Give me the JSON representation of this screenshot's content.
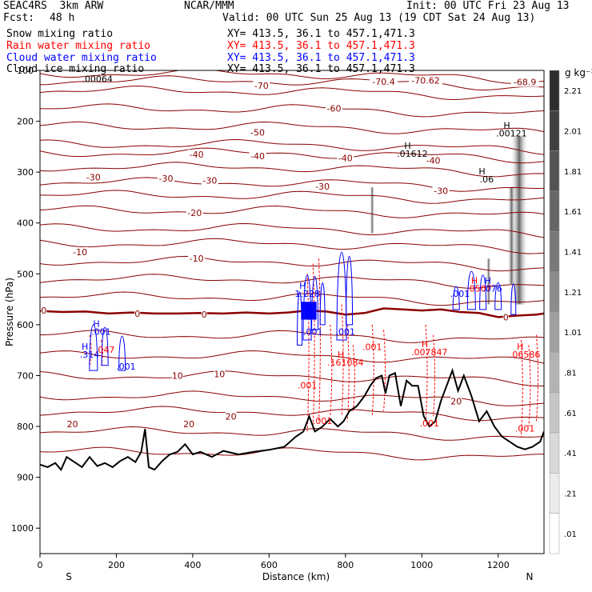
{
  "header": {
    "model": "SEAC4RS  3km ARW",
    "institution": "NCAR/MMM",
    "init": "Init: 00 UTC Fri 23 Aug 13",
    "fcst_label": "Fcst:",
    "fcst_value": "48 h",
    "valid": "Valid: 00 UTC Sun 25 Aug 13 (19 CDT Sat 24 Aug 13)"
  },
  "fields": [
    {
      "name": "Snow mixing ratio",
      "xy": "XY= 413.5, 36.1 to 457.1,471.3",
      "color": "#000000"
    },
    {
      "name": "Rain water mixing ratio",
      "xy": "XY= 413.5, 36.1 to 457.1,471.3",
      "color": "#ff0000"
    },
    {
      "name": "Cloud water mixing ratio",
      "xy": "XY= 413.5, 36.1 to 457.1,471.3",
      "color": "#0000ff"
    },
    {
      "name": "Cloud ice mixing ratio",
      "xy": "XY= 413.5, 36.1 to 457.1,471.3",
      "color": "#000000"
    }
  ],
  "colors": {
    "temperature_contour": "#8b0000",
    "zero_isotherm": "#8b0000",
    "rain": "#ff0000",
    "cloud_water": "#0000ff",
    "snow_ice": "#000000",
    "terrain": "#000000"
  },
  "chart_data": {
    "type": "cross-section",
    "xlabel": "Distance (km)",
    "ylabel": "Pressure (hPa)",
    "xlim": [
      0,
      1320
    ],
    "ylim": [
      1050,
      100
    ],
    "xticks": [
      "0",
      "200",
      "400",
      "600",
      "800",
      "1000",
      "1200"
    ],
    "yticks": [
      "100",
      "200",
      "300",
      "400",
      "500",
      "600",
      "700",
      "800",
      "900",
      "1000"
    ],
    "end_labels": {
      "left": "S",
      "right": "N"
    },
    "colorbar": {
      "unit": "g kg⁻¹",
      "labels": [
        "2.21",
        "2.01",
        "1.81",
        "1.61",
        "1.41",
        "1.21",
        "1.01",
        ".81",
        ".61",
        ".41",
        ".21",
        ".01"
      ]
    },
    "temperature_contour_labels": [
      {
        "text": "-70",
        "x": 580,
        "p": 130
      },
      {
        "text": "-70.4",
        "x": 900,
        "p": 122
      },
      {
        "text": "-70.62",
        "x": 1010,
        "p": 120
      },
      {
        "text": "-68.9",
        "x": 1270,
        "p": 123
      },
      {
        "text": "-60",
        "x": 770,
        "p": 175
      },
      {
        "text": "-50",
        "x": 570,
        "p": 222
      },
      {
        "text": "-40",
        "x": 410,
        "p": 265
      },
      {
        "text": "-40",
        "x": 570,
        "p": 268
      },
      {
        "text": "-40",
        "x": 800,
        "p": 272
      },
      {
        "text": "-40",
        "x": 1030,
        "p": 277
      },
      {
        "text": "-30",
        "x": 140,
        "p": 310
      },
      {
        "text": "-30",
        "x": 330,
        "p": 312
      },
      {
        "text": "-30",
        "x": 445,
        "p": 316
      },
      {
        "text": "-30",
        "x": 740,
        "p": 328
      },
      {
        "text": "-30",
        "x": 1050,
        "p": 337
      },
      {
        "text": "-20",
        "x": 405,
        "p": 380
      },
      {
        "text": "-10",
        "x": 105,
        "p": 457
      },
      {
        "text": "-10",
        "x": 410,
        "p": 470
      },
      {
        "text": "0",
        "x": 10,
        "p": 572
      },
      {
        "text": "0",
        "x": 255,
        "p": 578
      },
      {
        "text": "0",
        "x": 430,
        "p": 580
      },
      {
        "text": "0",
        "x": 1220,
        "p": 585
      },
      {
        "text": "10",
        "x": 360,
        "p": 700
      },
      {
        "text": "10",
        "x": 470,
        "p": 697
      },
      {
        "text": "20",
        "x": 85,
        "p": 795
      },
      {
        "text": "20",
        "x": 390,
        "p": 795
      },
      {
        "text": "20",
        "x": 500,
        "p": 780
      },
      {
        "text": "20",
        "x": 1090,
        "p": 750
      }
    ],
    "extrema_labels": [
      {
        "marker": "",
        "value": ".00064",
        "x": 150,
        "p": 123,
        "color": "#000000"
      },
      {
        "marker": "H",
        "value": ".01612",
        "x": 975,
        "p": 270,
        "color": "#000000"
      },
      {
        "marker": "H",
        "value": ".00121",
        "x": 1235,
        "p": 230,
        "color": "#000000"
      },
      {
        "marker": "H",
        "value": ".06",
        "x": 1170,
        "p": 320,
        "color": "#000000"
      },
      {
        "marker": "H",
        "value": ".001",
        "x": 160,
        "p": 620,
        "color": "#0000ff"
      },
      {
        "marker": "H",
        "value": ".314",
        "x": 130,
        "p": 665,
        "color": "#0000ff"
      },
      {
        "marker": "",
        "value": ".047",
        "x": 170,
        "p": 655,
        "color": "#ff0000"
      },
      {
        "marker": "",
        "value": ".001",
        "x": 225,
        "p": 688,
        "color": "#0000ff"
      },
      {
        "marker": "H",
        "value": "1.228",
        "x": 700,
        "p": 545,
        "color": "#0000ff"
      },
      {
        "marker": "",
        "value": ".001",
        "x": 715,
        "p": 620,
        "color": "#0000ff"
      },
      {
        "marker": "",
        "value": ".001",
        "x": 800,
        "p": 620,
        "color": "#0000ff"
      },
      {
        "marker": "H",
        "value": ".161084",
        "x": 800,
        "p": 680,
        "color": "#ff0000"
      },
      {
        "marker": "",
        "value": ".001",
        "x": 870,
        "p": 650,
        "color": "#ff0000"
      },
      {
        "marker": "H",
        "value": ".007847",
        "x": 1020,
        "p": 660,
        "color": "#ff0000"
      },
      {
        "marker": "",
        "value": ".001",
        "x": 1100,
        "p": 545,
        "color": "#0000ff"
      },
      {
        "marker": "H",
        "value": ".0507",
        "x": 1150,
        "p": 535,
        "color": "#ff0000"
      },
      {
        "marker": "H",
        "value": ".076",
        "x": 1185,
        "p": 535,
        "color": "#0000ff"
      },
      {
        "marker": "H",
        "value": ".06586",
        "x": 1270,
        "p": 665,
        "color": "#ff0000"
      },
      {
        "marker": "",
        "value": ".001",
        "x": 700,
        "p": 725,
        "color": "#ff0000"
      },
      {
        "marker": "",
        "value": ".001",
        "x": 740,
        "p": 795,
        "color": "#ff0000"
      },
      {
        "marker": "",
        "value": ".001",
        "x": 1020,
        "p": 800,
        "color": "#ff0000"
      },
      {
        "marker": "",
        "value": ".001",
        "x": 1270,
        "p": 810,
        "color": "#ff0000"
      }
    ],
    "terrain_profile": {
      "x": [
        0,
        20,
        40,
        55,
        70,
        90,
        110,
        130,
        150,
        170,
        190,
        210,
        230,
        250,
        265,
        275,
        285,
        300,
        320,
        340,
        360,
        380,
        400,
        420,
        450,
        480,
        520,
        560,
        600,
        640,
        670,
        690,
        705,
        720,
        740,
        760,
        780,
        795,
        810,
        830,
        850,
        865,
        880,
        895,
        905,
        915,
        930,
        945,
        960,
        975,
        990,
        1005,
        1020,
        1035,
        1050,
        1065,
        1080,
        1095,
        1110,
        1130,
        1150,
        1170,
        1190,
        1210,
        1230,
        1250,
        1270,
        1290,
        1310,
        1320
      ],
      "p": [
        875,
        880,
        872,
        885,
        860,
        870,
        880,
        860,
        878,
        872,
        880,
        868,
        860,
        870,
        850,
        805,
        880,
        885,
        868,
        855,
        850,
        835,
        855,
        850,
        860,
        848,
        855,
        850,
        846,
        840,
        820,
        810,
        780,
        810,
        800,
        785,
        800,
        790,
        770,
        760,
        740,
        720,
        705,
        700,
        735,
        700,
        695,
        760,
        710,
        720,
        720,
        780,
        800,
        790,
        750,
        720,
        690,
        730,
        700,
        740,
        790,
        770,
        800,
        820,
        830,
        840,
        845,
        840,
        830,
        810
      ]
    },
    "zero_isotherm": {
      "x": [
        0,
        60,
        120,
        180,
        240,
        300,
        360,
        420,
        480,
        540,
        600,
        650,
        700,
        750,
        800,
        850,
        900,
        950,
        1000,
        1050,
        1100,
        1150,
        1200,
        1250,
        1300,
        1320
      ],
      "p": [
        573,
        575,
        574,
        578,
        576,
        578,
        578,
        577,
        578,
        576,
        578,
        576,
        572,
        574,
        580,
        577,
        568,
        570,
        572,
        570,
        575,
        577,
        585,
        582,
        580,
        578
      ]
    },
    "temperature_levels_p": [
      106,
      120,
      140,
      175,
      210,
      245,
      262,
      290,
      320,
      345,
      375,
      410,
      440,
      475,
      510,
      545,
      620,
      660,
      700,
      740,
      770,
      810,
      850
    ]
  }
}
